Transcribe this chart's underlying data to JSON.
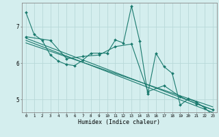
{
  "title": "",
  "xlabel": "Humidex (Indice chaleur)",
  "bg_color": "#d4eeee",
  "grid_color": "#b8d8d8",
  "line_color": "#1a7a6e",
  "spine_color": "#888888",
  "xlim": [
    -0.5,
    23.5
  ],
  "ylim": [
    4.65,
    7.65
  ],
  "yticks": [
    5,
    6,
    7
  ],
  "xticks": [
    0,
    1,
    2,
    3,
    4,
    5,
    6,
    7,
    8,
    9,
    10,
    11,
    12,
    13,
    14,
    15,
    16,
    17,
    18,
    19,
    20,
    21,
    22,
    23
  ],
  "lines": [
    {
      "x": [
        0,
        1,
        2,
        3,
        4,
        5,
        6,
        7,
        8,
        9,
        10,
        11,
        12,
        13,
        14,
        15,
        16,
        17,
        18,
        19,
        20,
        21,
        22,
        23
      ],
      "y": [
        7.38,
        6.78,
        6.62,
        6.22,
        6.05,
        5.96,
        5.93,
        6.08,
        6.27,
        6.27,
        6.27,
        6.63,
        6.55,
        7.56,
        6.6,
        5.15,
        6.27,
        5.9,
        5.72,
        4.85,
        5.02,
        4.93,
        4.77,
        4.58
      ],
      "marker": true
    },
    {
      "x": [
        0,
        3,
        5,
        7,
        9,
        11,
        13,
        15,
        17,
        19,
        21,
        23
      ],
      "y": [
        6.72,
        6.62,
        6.12,
        6.18,
        6.22,
        6.45,
        6.52,
        5.22,
        5.38,
        5.08,
        4.88,
        4.72
      ],
      "marker": true
    },
    {
      "x": [
        0,
        23
      ],
      "y": [
        6.62,
        4.65
      ],
      "marker": false
    },
    {
      "x": [
        0,
        23
      ],
      "y": [
        6.68,
        4.72
      ],
      "marker": false
    },
    {
      "x": [
        0,
        23
      ],
      "y": [
        6.55,
        4.8
      ],
      "marker": false
    }
  ],
  "xlabel_fontsize": 6.0,
  "tick_fontsize_x": 4.2,
  "tick_fontsize_y": 5.5,
  "marker_size": 2.0,
  "line_width": 0.8
}
